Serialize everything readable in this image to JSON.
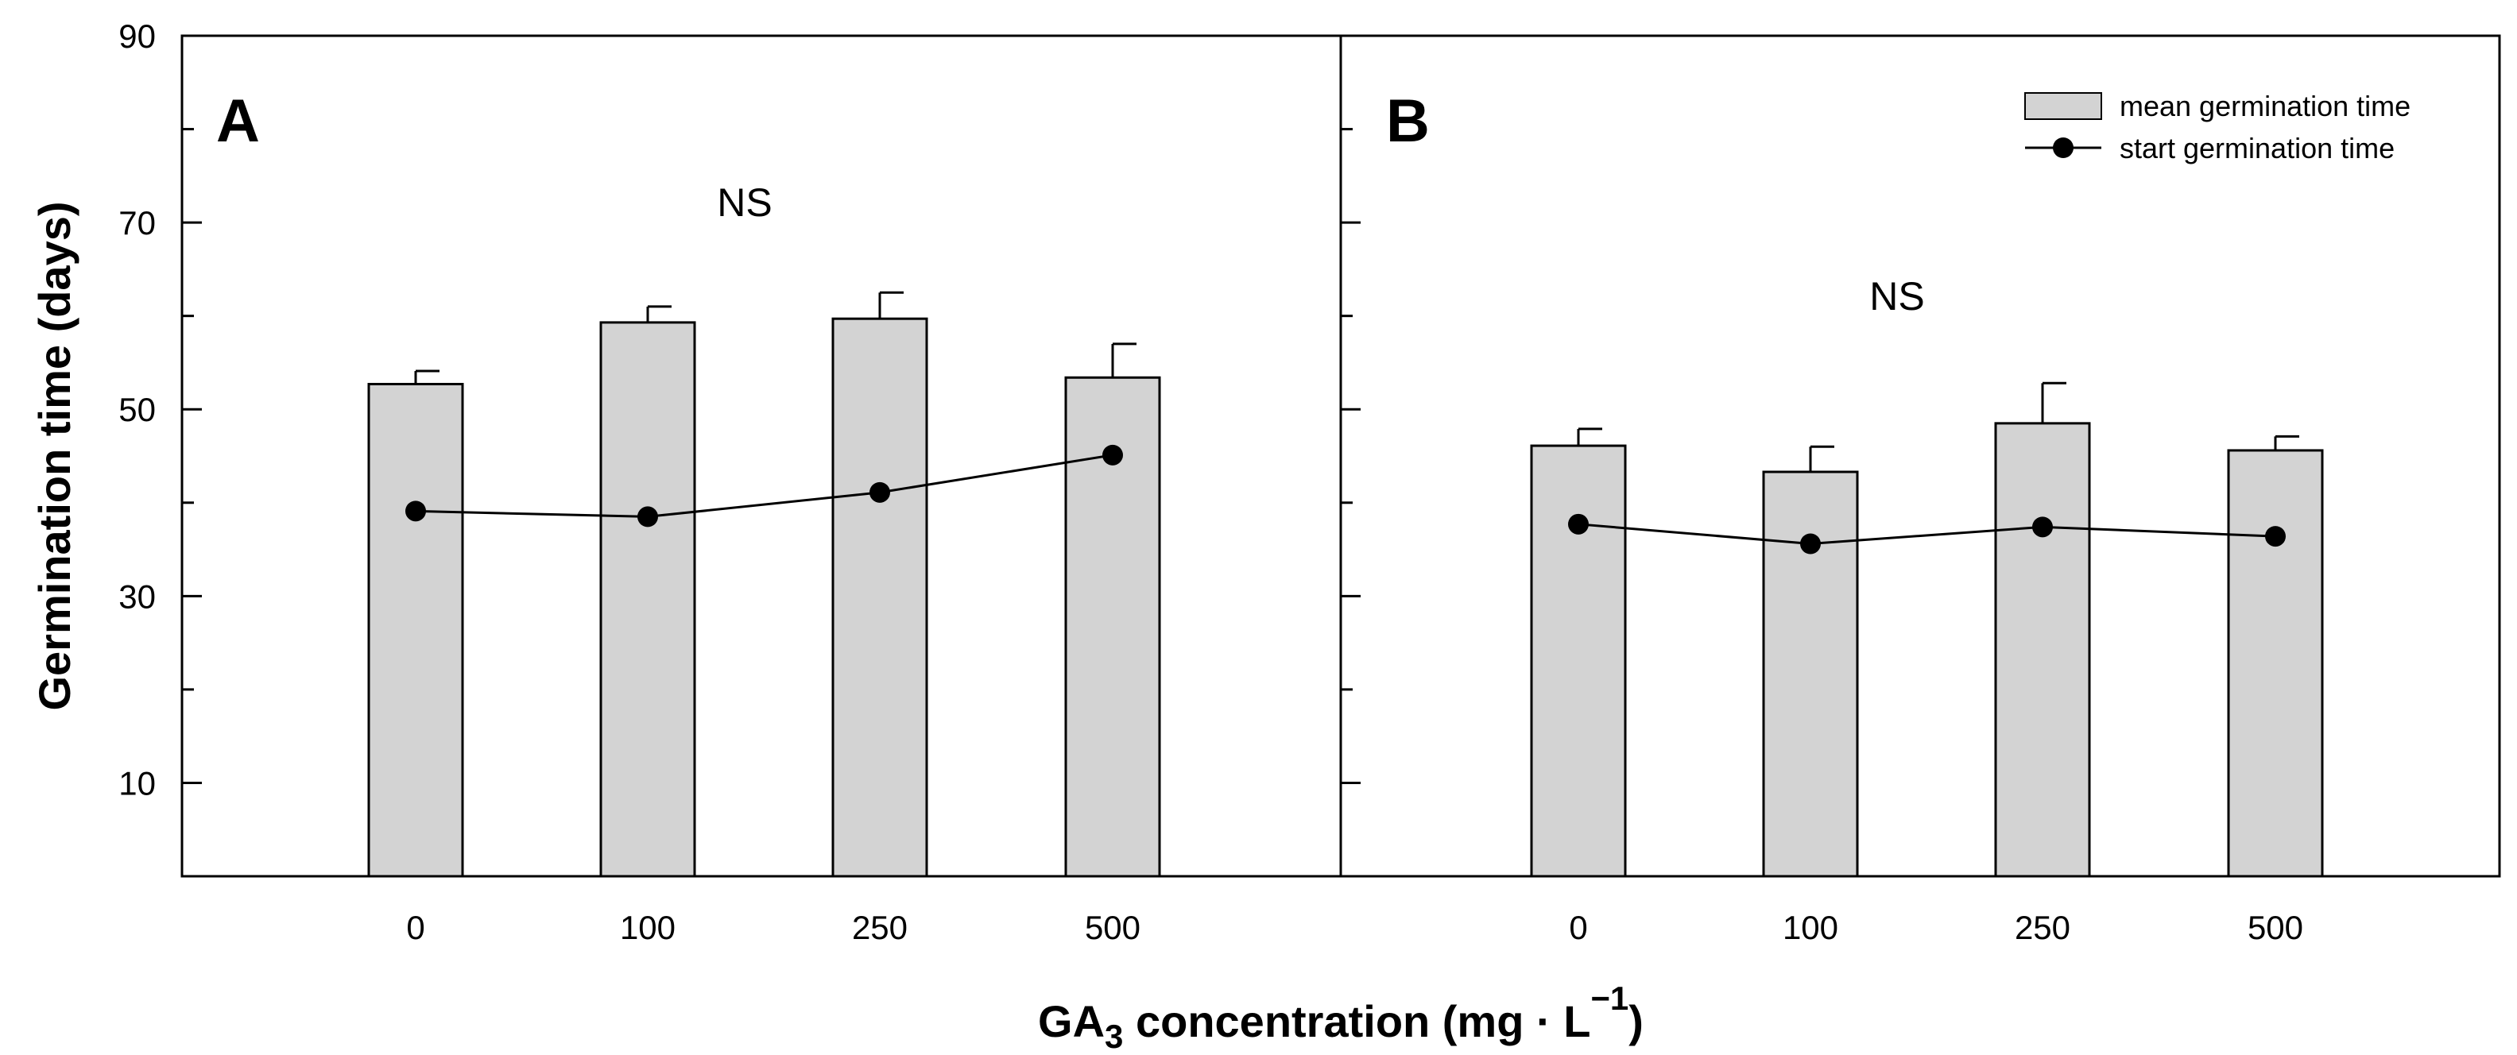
{
  "chart_data": {
    "type": "bar",
    "ylabel": "Germination time (days)",
    "xlabel": {
      "prefix": "GA",
      "subscript": "3",
      "main": " concentration (mg · L",
      "superscript": "−1",
      "suffix": ")"
    },
    "ylim": [
      0,
      90
    ],
    "yticks": [
      10,
      30,
      50,
      70,
      90
    ],
    "categories": [
      "0",
      "100",
      "250",
      "500"
    ],
    "colors": {
      "bar_fill": "#d3d3d3",
      "bar_stroke": "#000000",
      "line": "#000000",
      "marker": "#000000",
      "axis": "#000000",
      "background": "#ffffff"
    },
    "legend": {
      "placement": "top-right",
      "panel": "B",
      "entries": [
        {
          "label": "mean germination time",
          "kind": "bar"
        },
        {
          "label": "start germination time",
          "kind": "line-marker"
        }
      ]
    },
    "panels": [
      {
        "label": "A",
        "annotation": "NS",
        "series": [
          {
            "name": "mean germination time",
            "type": "bar",
            "values": [
              52.7,
              59.3,
              59.7,
              53.4
            ],
            "errors": [
              1.4,
              1.7,
              2.8,
              3.6
            ]
          },
          {
            "name": "start germination time",
            "type": "line",
            "values": [
              39.1,
              38.5,
              41.1,
              45.1
            ]
          }
        ]
      },
      {
        "label": "B",
        "annotation": "NS",
        "series": [
          {
            "name": "mean germination time",
            "type": "bar",
            "values": [
              46.1,
              43.3,
              48.5,
              45.6
            ],
            "errors": [
              1.8,
              2.7,
              4.3,
              1.5
            ]
          },
          {
            "name": "start germination time",
            "type": "line",
            "values": [
              37.7,
              35.6,
              37.4,
              36.4
            ]
          }
        ]
      }
    ]
  }
}
